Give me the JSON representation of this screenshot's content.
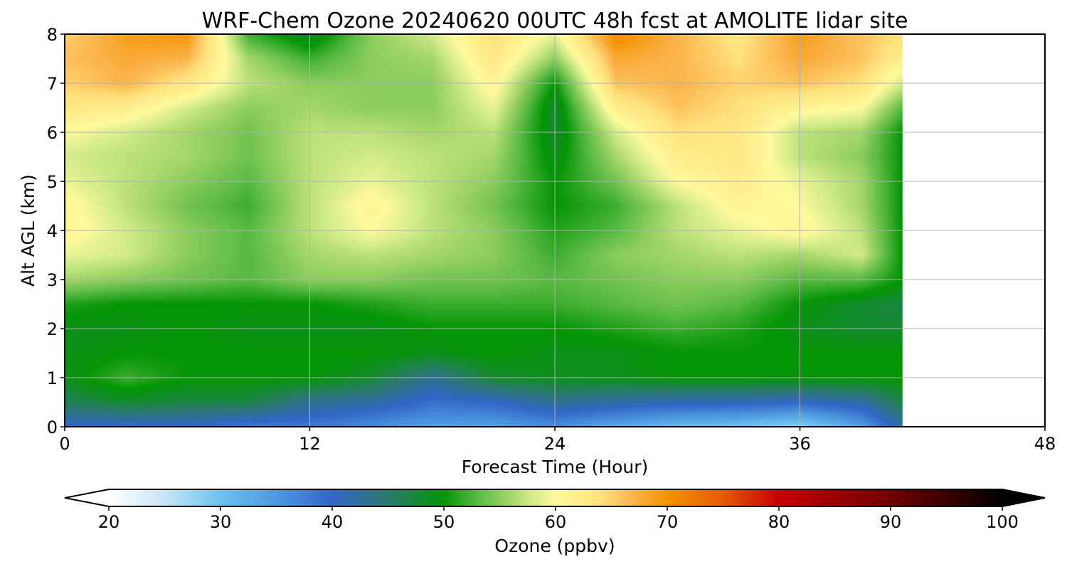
{
  "chart_data": {
    "type": "heatmap",
    "title": "WRF-Chem Ozone  20240620 00UTC 48h fcst at AMOLITE lidar site",
    "xlabel": "Forecast Time (Hour)",
    "ylabel": "Alt AGL (km)",
    "xlim": [
      0,
      48
    ],
    "ylim": [
      0,
      8
    ],
    "x_ticks": [
      "0",
      "12",
      "24",
      "36",
      "48"
    ],
    "y_ticks": [
      "0",
      "1",
      "2",
      "3",
      "4",
      "5",
      "6",
      "7",
      "8"
    ],
    "grid": true,
    "data_extent_hours": [
      0,
      41
    ],
    "x_hours": [
      0,
      3,
      6,
      9,
      12,
      15,
      18,
      21,
      24,
      27,
      30,
      33,
      36,
      39,
      41
    ],
    "y_km": [
      0,
      0.5,
      1,
      1.5,
      2,
      2.5,
      3,
      3.5,
      4,
      4.5,
      5,
      5.5,
      6,
      6.5,
      7,
      7.5,
      8
    ],
    "ozone_ppbv": [
      [
        40,
        40,
        40,
        38,
        38,
        36,
        34,
        34,
        36,
        33,
        31,
        30,
        28,
        34,
        42
      ],
      [
        46,
        48,
        47,
        47,
        43,
        42,
        39,
        40,
        43,
        42,
        41,
        41,
        40,
        42,
        47
      ],
      [
        49,
        52,
        50,
        50,
        50,
        48,
        43,
        48,
        49,
        49,
        50,
        50,
        50,
        50,
        50
      ],
      [
        49,
        50,
        50,
        50,
        50,
        50,
        49,
        50,
        49,
        49,
        50,
        50,
        50,
        50,
        50
      ],
      [
        49,
        49,
        50,
        49,
        49,
        49,
        50,
        50,
        50,
        51,
        52,
        51,
        49,
        48,
        48
      ],
      [
        51,
        50,
        50,
        50,
        50,
        51,
        52,
        52,
        52,
        53,
        54,
        53,
        50,
        48,
        47
      ],
      [
        56,
        55,
        54,
        53,
        55,
        55,
        54,
        54,
        53,
        54,
        55,
        55,
        53,
        53,
        50
      ],
      [
        59,
        58,
        55,
        53,
        56,
        57,
        56,
        55,
        52,
        55,
        56,
        57,
        56,
        58,
        50
      ],
      [
        61,
        58,
        55,
        53,
        57,
        60,
        57,
        55,
        51,
        53,
        57,
        59,
        61,
        57,
        50
      ],
      [
        61,
        57,
        54,
        52,
        57,
        61,
        57,
        54,
        50,
        52,
        57,
        61,
        60,
        56,
        50
      ],
      [
        59,
        57,
        55,
        53,
        57,
        59,
        57,
        55,
        50,
        54,
        60,
        62,
        59,
        56,
        50
      ],
      [
        58,
        57,
        56,
        54,
        57,
        58,
        57,
        56,
        49,
        56,
        62,
        63,
        57,
        55,
        50
      ],
      [
        60,
        58,
        56,
        54,
        57,
        57,
        56,
        57,
        48,
        58,
        64,
        63,
        57,
        56,
        50
      ],
      [
        63,
        62,
        58,
        55,
        56,
        55,
        55,
        59,
        48,
        62,
        66,
        64,
        61,
        60,
        53
      ],
      [
        65,
        67,
        63,
        57,
        55,
        55,
        55,
        61,
        50,
        66,
        67,
        65,
        66,
        64,
        58
      ],
      [
        66,
        68,
        67,
        56,
        52,
        55,
        56,
        63,
        55,
        68,
        67,
        64,
        68,
        66,
        62
      ],
      [
        65,
        69,
        70,
        52,
        48,
        55,
        58,
        64,
        59,
        71,
        67,
        63,
        69,
        66,
        64
      ]
    ],
    "colorbar": {
      "label": "Ozone  (ppbv)",
      "min": 20,
      "max": 100,
      "ticks": [
        "20",
        "30",
        "40",
        "50",
        "60",
        "70",
        "80",
        "90",
        "100"
      ],
      "extend": "both",
      "stops": [
        {
          "v": 20,
          "c": "#ffffff"
        },
        {
          "v": 25,
          "c": "#c6e6f7"
        },
        {
          "v": 30,
          "c": "#6cc2f0"
        },
        {
          "v": 35,
          "c": "#4d98e0"
        },
        {
          "v": 40,
          "c": "#3366c7"
        },
        {
          "v": 45,
          "c": "#2b7a6e"
        },
        {
          "v": 50,
          "c": "#049504"
        },
        {
          "v": 53,
          "c": "#58b944"
        },
        {
          "v": 56,
          "c": "#a5d76b"
        },
        {
          "v": 58,
          "c": "#d4ec8c"
        },
        {
          "v": 60,
          "c": "#fffa9c"
        },
        {
          "v": 64,
          "c": "#ffe27e"
        },
        {
          "v": 67,
          "c": "#fbb44c"
        },
        {
          "v": 70,
          "c": "#f59300"
        },
        {
          "v": 75,
          "c": "#e55a00"
        },
        {
          "v": 80,
          "c": "#c50000"
        },
        {
          "v": 85,
          "c": "#9a0000"
        },
        {
          "v": 90,
          "c": "#6e0000"
        },
        {
          "v": 95,
          "c": "#3a0000"
        },
        {
          "v": 100,
          "c": "#000000"
        }
      ]
    }
  }
}
